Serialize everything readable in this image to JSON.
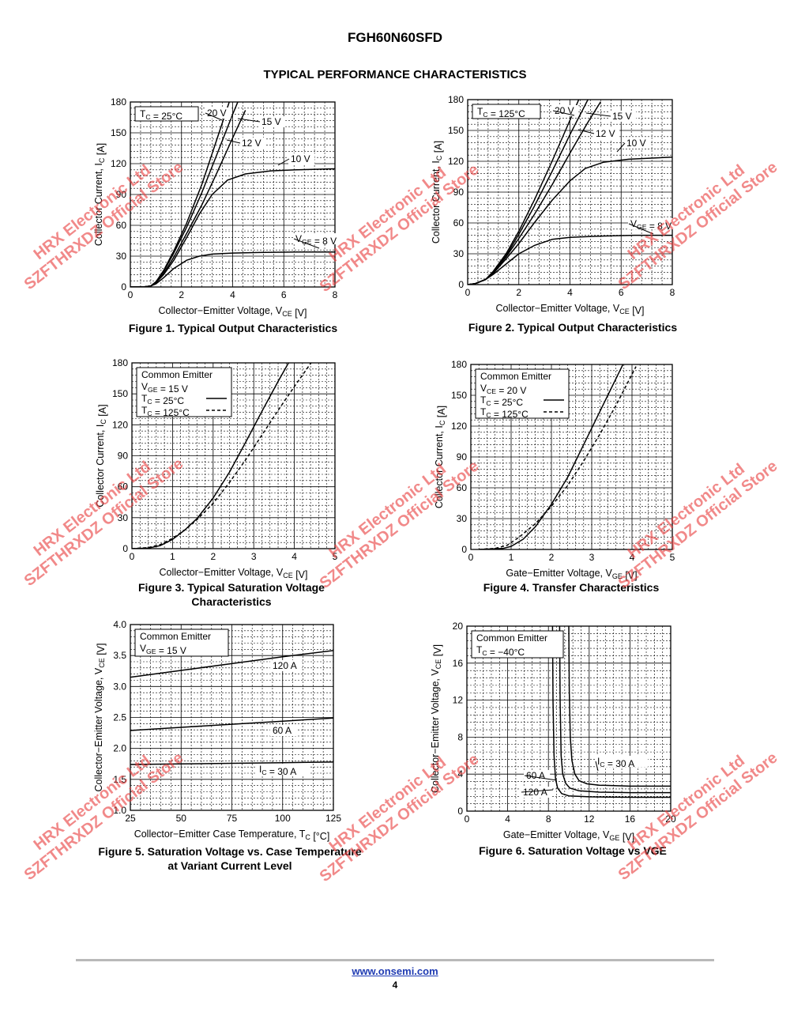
{
  "header": {
    "part_number": "FGH60N60SFD",
    "section_title": "TYPICAL PERFORMANCE CHARACTERISTICS"
  },
  "footer": {
    "link": "www.onsemi.com",
    "page": "4"
  },
  "watermark": {
    "line1": "HRX Electronic Ltd",
    "line2": "SZFTHRXDZ Official Store"
  },
  "chart_data": [
    {
      "id": "fig1",
      "type": "line",
      "title": "Figure 1. Typical Output Characteristics",
      "xlabel": "Collector−Emitter Voltage, VCE [V]",
      "ylabel": "Collector Current, IC [A]",
      "xlim": [
        0,
        8
      ],
      "ylim": [
        0,
        180
      ],
      "xticks": [
        "0",
        "2",
        "4",
        "6",
        "8"
      ],
      "yticks": [
        "0",
        "30",
        "60",
        "90",
        "120",
        "150",
        "180"
      ],
      "grid": true,
      "legend": [
        "TC = 25°C"
      ],
      "series": [
        {
          "name": "20 V",
          "x": [
            0,
            0.5,
            0.8,
            1.0,
            1.3,
            1.7,
            2.2,
            2.8,
            3.4,
            4.0
          ],
          "y": [
            0,
            0,
            1,
            5,
            16,
            35,
            62,
            100,
            145,
            190
          ]
        },
        {
          "name": "15 V",
          "x": [
            0,
            0.5,
            0.8,
            1.0,
            1.3,
            1.7,
            2.2,
            2.8,
            3.4,
            4.0,
            4.5
          ],
          "y": [
            0,
            0,
            1,
            5,
            15,
            33,
            58,
            92,
            130,
            168,
            198
          ]
        },
        {
          "name": "12 V",
          "x": [
            0,
            0.5,
            0.8,
            1.0,
            1.3,
            1.7,
            2.2,
            2.8,
            3.4,
            4.0,
            4.5
          ],
          "y": [
            0,
            0,
            1,
            4,
            13,
            29,
            52,
            80,
            112,
            145,
            172
          ]
        },
        {
          "name": "10 V",
          "x": [
            0,
            0.5,
            0.8,
            1.0,
            1.3,
            1.7,
            2.2,
            2.7,
            3.2,
            3.8,
            4.5,
            5.5,
            6.5,
            8.0
          ],
          "y": [
            0,
            0,
            1,
            4,
            12,
            26,
            48,
            71,
            90,
            104,
            110,
            113,
            114,
            115
          ]
        },
        {
          "name": "VGE = 8 V",
          "x": [
            0,
            0.5,
            0.8,
            1.0,
            1.3,
            1.7,
            2.2,
            2.7,
            3.2,
            4.0,
            5.0,
            6.5,
            8.0
          ],
          "y": [
            0,
            0,
            1,
            3,
            9,
            18,
            26,
            30,
            32,
            33,
            33.5,
            34,
            34
          ]
        }
      ]
    },
    {
      "id": "fig2",
      "type": "line",
      "title": "Figure 2. Typical Output Characteristics",
      "xlabel": "Collector−Emitter Voltage, VCE [V]",
      "ylabel": "Collector Current, IC [A]",
      "xlim": [
        0,
        8
      ],
      "ylim": [
        0,
        180
      ],
      "xticks": [
        "0",
        "2",
        "4",
        "6",
        "8"
      ],
      "yticks": [
        "0",
        "30",
        "60",
        "90",
        "120",
        "150",
        "180"
      ],
      "grid": true,
      "legend": [
        "TC = 125°C"
      ],
      "series": [
        {
          "name": "20 V",
          "x": [
            0,
            0.3,
            0.7,
            1.0,
            1.5,
            2.0,
            2.6,
            3.3,
            4.0,
            4.6
          ],
          "y": [
            0,
            1,
            5,
            13,
            30,
            52,
            82,
            120,
            160,
            195
          ]
        },
        {
          "name": "15 V",
          "x": [
            0,
            0.3,
            0.7,
            1.0,
            1.5,
            2.0,
            2.6,
            3.3,
            4.0,
            4.7,
            5.2
          ],
          "y": [
            0,
            1,
            5,
            12,
            28,
            49,
            76,
            110,
            146,
            180,
            200
          ]
        },
        {
          "name": "12 V",
          "x": [
            0,
            0.3,
            0.7,
            1.0,
            1.5,
            2.0,
            2.6,
            3.3,
            4.0,
            4.7,
            5.2
          ],
          "y": [
            0,
            1,
            5,
            12,
            27,
            45,
            68,
            97,
            128,
            158,
            178
          ]
        },
        {
          "name": "10 V",
          "x": [
            0,
            0.3,
            0.7,
            1.0,
            1.5,
            2.0,
            2.6,
            3.3,
            4.0,
            4.6,
            5.3,
            6.3,
            8.0
          ],
          "y": [
            0,
            1,
            5,
            11,
            25,
            40,
            60,
            82,
            101,
            113,
            119,
            122,
            124
          ]
        },
        {
          "name": "VGE = 8 V",
          "x": [
            0,
            0.3,
            0.7,
            1.0,
            1.5,
            2.0,
            2.6,
            3.3,
            4.0,
            5.0,
            6.5,
            8.0
          ],
          "y": [
            0,
            1,
            5,
            10,
            20,
            30,
            38,
            44,
            46,
            47,
            48,
            48
          ]
        }
      ]
    },
    {
      "id": "fig3",
      "type": "line",
      "title": "Figure 3. Typical Saturation Voltage",
      "title2": "Characteristics",
      "xlabel": "Collector−Emitter Voltage, VCE [V]",
      "ylabel": "Collector Current, IC [A]",
      "xlim": [
        0,
        5
      ],
      "ylim": [
        0,
        180
      ],
      "xticks": [
        "0",
        "1",
        "2",
        "3",
        "4",
        "5"
      ],
      "yticks": [
        "0",
        "30",
        "60",
        "90",
        "120",
        "150",
        "180"
      ],
      "grid": true,
      "legend": [
        "Common Emitter",
        "VGE = 15 V",
        "TC = 25°C",
        "TC = 125°C"
      ],
      "series": [
        {
          "name": "TC = 25°C",
          "dash": false,
          "x": [
            0,
            0.4,
            0.7,
            1.0,
            1.3,
            1.6,
            2.0,
            2.4,
            2.8,
            3.2,
            3.6,
            4.0
          ],
          "y": [
            0,
            0.5,
            3,
            9,
            18,
            29,
            49,
            74,
            103,
            133,
            162,
            190
          ]
        },
        {
          "name": "TC = 125°C",
          "dash": true,
          "x": [
            0,
            0.4,
            0.7,
            1.0,
            1.3,
            1.6,
            2.0,
            2.4,
            2.8,
            3.2,
            3.6,
            4.0,
            4.5
          ],
          "y": [
            0,
            1,
            4,
            10,
            18,
            28,
            44,
            64,
            86,
            110,
            134,
            157,
            185
          ]
        }
      ]
    },
    {
      "id": "fig4",
      "type": "line",
      "title": "Figure 4. Transfer Characteristics",
      "xlabel": "Gate−Emitter Voltage, VGE [V]",
      "ylabel": "Collector Current, IC [A]",
      "xlim": [
        0,
        5
      ],
      "ylim": [
        0,
        180
      ],
      "xticks": [
        "0",
        "1",
        "2",
        "3",
        "4",
        "5"
      ],
      "yticks": [
        "0",
        "30",
        "60",
        "90",
        "120",
        "150",
        "180"
      ],
      "grid": true,
      "legend": [
        "Common Emitter",
        "VCE = 20 V",
        "TC = 25°C",
        "TC = 125°C"
      ],
      "series": [
        {
          "name": "TC = 25°C",
          "dash": false,
          "x": [
            0.2,
            0.8,
            1.0,
            1.3,
            1.6,
            2.0,
            2.4,
            2.8,
            3.2,
            3.6,
            3.9
          ],
          "y": [
            0,
            1,
            3,
            10,
            22,
            44,
            70,
            102,
            134,
            166,
            190
          ]
        },
        {
          "name": "TC = 125°C",
          "dash": true,
          "x": [
            0.2,
            0.6,
            0.9,
            1.2,
            1.6,
            2.0,
            2.4,
            2.8,
            3.2,
            3.6,
            4.1
          ],
          "y": [
            0,
            1,
            4,
            12,
            25,
            42,
            62,
            86,
            112,
            140,
            178
          ]
        }
      ]
    },
    {
      "id": "fig5",
      "type": "line",
      "title": "Figure 5. Saturation Voltage vs. Case Temperature",
      "title2": "at Variant Current Level",
      "xlabel": "Collector−Emitter Case Temperature, TC [°C]",
      "ylabel": "Collector−Emitter Voltage, VCE [V]",
      "xlim": [
        25,
        125
      ],
      "ylim": [
        1.0,
        4.0
      ],
      "xticks": [
        "25",
        "50",
        "75",
        "100",
        "125"
      ],
      "yticks": [
        "1.0",
        "1.5",
        "2.0",
        "2.5",
        "3.0",
        "3.5",
        "4.0"
      ],
      "grid": true,
      "legend": [
        "Common Emitter",
        "VGE = 15 V"
      ],
      "series": [
        {
          "name": "120 A",
          "x": [
            25,
            50,
            75,
            100,
            125
          ],
          "y": [
            3.15,
            3.26,
            3.37,
            3.48,
            3.58
          ]
        },
        {
          "name": "60 A",
          "x": [
            25,
            50,
            75,
            100,
            125
          ],
          "y": [
            2.29,
            2.34,
            2.39,
            2.44,
            2.49
          ]
        },
        {
          "name": "IC = 30 A",
          "x": [
            25,
            50,
            75,
            100,
            125
          ],
          "y": [
            1.74,
            1.75,
            1.76,
            1.77,
            1.78
          ]
        }
      ]
    },
    {
      "id": "fig6",
      "type": "line",
      "title": "Figure 6. Saturation Voltage vs VGE",
      "xlabel": "Gate−Emitter Voltage, VGE [V]",
      "ylabel": "Collector−Emitter Voltage, VCE [V]",
      "xlim": [
        0,
        20
      ],
      "ylim": [
        0,
        20
      ],
      "xticks": [
        "0",
        "4",
        "8",
        "12",
        "16",
        "20"
      ],
      "yticks": [
        "0",
        "4",
        "8",
        "12",
        "16",
        "20"
      ],
      "grid": true,
      "legend": [
        "Common Emitter",
        "TC = −40°C"
      ],
      "series": [
        {
          "name": "IC = 30 A",
          "x": [
            8.4,
            8.45,
            8.55,
            8.7,
            8.9,
            9.3,
            10,
            12,
            16,
            20
          ],
          "y": [
            20,
            12,
            6,
            3.5,
            2.5,
            1.9,
            1.65,
            1.55,
            1.5,
            1.5
          ]
        },
        {
          "name": "60 A",
          "x": [
            9.1,
            9.15,
            9.25,
            9.4,
            9.7,
            10.1,
            11,
            13,
            16,
            20
          ],
          "y": [
            20,
            12,
            6,
            4,
            3,
            2.5,
            2.2,
            2.05,
            2.0,
            2.0
          ]
        },
        {
          "name": "120 A",
          "x": [
            10.0,
            10.05,
            10.15,
            10.3,
            10.6,
            11.0,
            11.8,
            13,
            16,
            20
          ],
          "y": [
            20,
            13,
            8,
            5.5,
            4.0,
            3.3,
            2.95,
            2.8,
            2.7,
            2.7
          ]
        }
      ]
    }
  ]
}
